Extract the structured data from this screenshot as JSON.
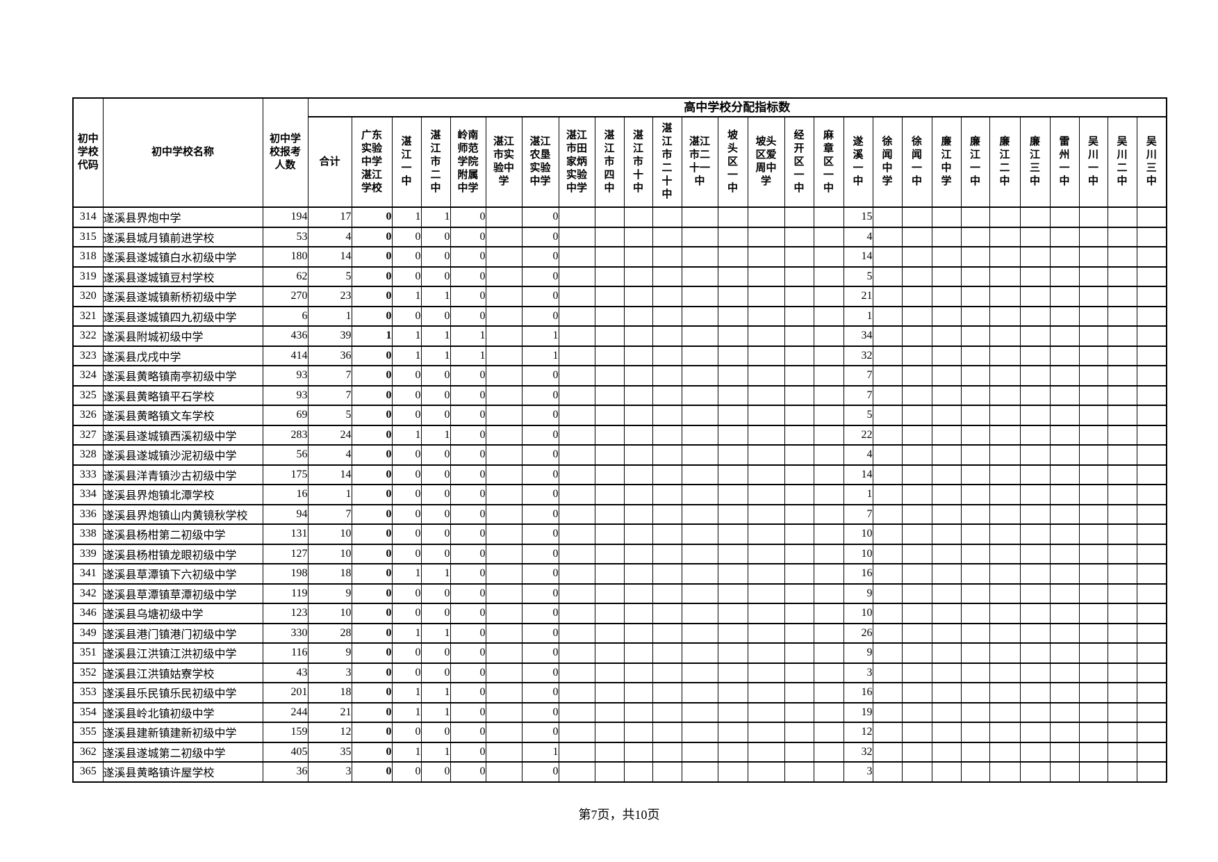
{
  "document": {
    "span_header": "高中学校分配指标数",
    "footer": "第7页，共10页"
  },
  "table": {
    "left_columns": [
      {
        "label": "初中学校代码"
      },
      {
        "label": "初中学校名称"
      },
      {
        "label": "初中学校报考人数"
      }
    ],
    "high_school_columns": [
      {
        "label": "合计"
      },
      {
        "label": "广东实验中学湛江学校"
      },
      {
        "label": "湛江一中"
      },
      {
        "label": "湛江市二中"
      },
      {
        "label": "岭南师范学院附属中学"
      },
      {
        "label": "湛江市实验中学"
      },
      {
        "label": "湛江农垦实验中学"
      },
      {
        "label": "湛江市田家炳实验中学"
      },
      {
        "label": "湛江市四中"
      },
      {
        "label": "湛江市十中"
      },
      {
        "label": "湛江市二十中"
      },
      {
        "label": "湛江市二十一中"
      },
      {
        "label": "坡头区一中"
      },
      {
        "label": "坡头区爱周中学"
      },
      {
        "label": "经开区一中"
      },
      {
        "label": "麻章区一中"
      },
      {
        "label": "遂溪一中"
      },
      {
        "label": "徐闻中学"
      },
      {
        "label": "徐闻一中"
      },
      {
        "label": "廉江中学"
      },
      {
        "label": "廉江一中"
      },
      {
        "label": "廉江二中"
      },
      {
        "label": "廉江三中"
      },
      {
        "label": "雷州一中"
      },
      {
        "label": "吴川一中"
      },
      {
        "label": "吴川二中"
      },
      {
        "label": "吴川三中"
      }
    ],
    "bold_quota_col_index": 1,
    "rows": [
      {
        "code": "314",
        "name": "遂溪县界炮中学",
        "applicants": 194,
        "quotas": [
          17,
          0,
          1,
          1,
          0,
          null,
          0,
          null,
          null,
          null,
          null,
          null,
          null,
          null,
          null,
          null,
          15,
          null,
          null,
          null,
          null,
          null,
          null,
          null,
          null,
          null,
          null
        ]
      },
      {
        "code": "315",
        "name": "遂溪县城月镇前进学校",
        "applicants": 53,
        "quotas": [
          4,
          0,
          0,
          0,
          0,
          null,
          0,
          null,
          null,
          null,
          null,
          null,
          null,
          null,
          null,
          null,
          4,
          null,
          null,
          null,
          null,
          null,
          null,
          null,
          null,
          null,
          null
        ]
      },
      {
        "code": "318",
        "name": "遂溪县遂城镇白水初级中学",
        "applicants": 180,
        "quotas": [
          14,
          0,
          0,
          0,
          0,
          null,
          0,
          null,
          null,
          null,
          null,
          null,
          null,
          null,
          null,
          null,
          14,
          null,
          null,
          null,
          null,
          null,
          null,
          null,
          null,
          null,
          null
        ]
      },
      {
        "code": "319",
        "name": "遂溪县遂城镇豆村学校",
        "applicants": 62,
        "quotas": [
          5,
          0,
          0,
          0,
          0,
          null,
          0,
          null,
          null,
          null,
          null,
          null,
          null,
          null,
          null,
          null,
          5,
          null,
          null,
          null,
          null,
          null,
          null,
          null,
          null,
          null,
          null
        ]
      },
      {
        "code": "320",
        "name": "遂溪县遂城镇新桥初级中学",
        "applicants": 270,
        "quotas": [
          23,
          0,
          1,
          1,
          0,
          null,
          0,
          null,
          null,
          null,
          null,
          null,
          null,
          null,
          null,
          null,
          21,
          null,
          null,
          null,
          null,
          null,
          null,
          null,
          null,
          null,
          null
        ]
      },
      {
        "code": "321",
        "name": "遂溪县遂城镇四九初级中学",
        "applicants": 6,
        "quotas": [
          1,
          0,
          0,
          0,
          0,
          null,
          0,
          null,
          null,
          null,
          null,
          null,
          null,
          null,
          null,
          null,
          1,
          null,
          null,
          null,
          null,
          null,
          null,
          null,
          null,
          null,
          null
        ]
      },
      {
        "code": "322",
        "name": "遂溪县附城初级中学",
        "applicants": 436,
        "quotas": [
          39,
          1,
          1,
          1,
          1,
          null,
          1,
          null,
          null,
          null,
          null,
          null,
          null,
          null,
          null,
          null,
          34,
          null,
          null,
          null,
          null,
          null,
          null,
          null,
          null,
          null,
          null
        ]
      },
      {
        "code": "323",
        "name": "遂溪县戊戌中学",
        "applicants": 414,
        "quotas": [
          36,
          0,
          1,
          1,
          1,
          null,
          1,
          null,
          null,
          null,
          null,
          null,
          null,
          null,
          null,
          null,
          32,
          null,
          null,
          null,
          null,
          null,
          null,
          null,
          null,
          null,
          null
        ]
      },
      {
        "code": "324",
        "name": "遂溪县黄略镇南亭初级中学",
        "applicants": 93,
        "quotas": [
          7,
          0,
          0,
          0,
          0,
          null,
          0,
          null,
          null,
          null,
          null,
          null,
          null,
          null,
          null,
          null,
          7,
          null,
          null,
          null,
          null,
          null,
          null,
          null,
          null,
          null,
          null
        ]
      },
      {
        "code": "325",
        "name": "遂溪县黄略镇平石学校",
        "applicants": 93,
        "quotas": [
          7,
          0,
          0,
          0,
          0,
          null,
          0,
          null,
          null,
          null,
          null,
          null,
          null,
          null,
          null,
          null,
          7,
          null,
          null,
          null,
          null,
          null,
          null,
          null,
          null,
          null,
          null
        ]
      },
      {
        "code": "326",
        "name": "遂溪县黄略镇文车学校",
        "applicants": 69,
        "quotas": [
          5,
          0,
          0,
          0,
          0,
          null,
          0,
          null,
          null,
          null,
          null,
          null,
          null,
          null,
          null,
          null,
          5,
          null,
          null,
          null,
          null,
          null,
          null,
          null,
          null,
          null,
          null
        ]
      },
      {
        "code": "327",
        "name": "遂溪县遂城镇西溪初级中学",
        "applicants": 283,
        "quotas": [
          24,
          0,
          1,
          1,
          0,
          null,
          0,
          null,
          null,
          null,
          null,
          null,
          null,
          null,
          null,
          null,
          22,
          null,
          null,
          null,
          null,
          null,
          null,
          null,
          null,
          null,
          null
        ]
      },
      {
        "code": "328",
        "name": "遂溪县遂城镇沙泥初级中学",
        "applicants": 56,
        "quotas": [
          4,
          0,
          0,
          0,
          0,
          null,
          0,
          null,
          null,
          null,
          null,
          null,
          null,
          null,
          null,
          null,
          4,
          null,
          null,
          null,
          null,
          null,
          null,
          null,
          null,
          null,
          null
        ]
      },
      {
        "code": "333",
        "name": "遂溪县洋青镇沙古初级中学",
        "applicants": 175,
        "quotas": [
          14,
          0,
          0,
          0,
          0,
          null,
          0,
          null,
          null,
          null,
          null,
          null,
          null,
          null,
          null,
          null,
          14,
          null,
          null,
          null,
          null,
          null,
          null,
          null,
          null,
          null,
          null
        ]
      },
      {
        "code": "334",
        "name": "遂溪县界炮镇北潭学校",
        "applicants": 16,
        "quotas": [
          1,
          0,
          0,
          0,
          0,
          null,
          0,
          null,
          null,
          null,
          null,
          null,
          null,
          null,
          null,
          null,
          1,
          null,
          null,
          null,
          null,
          null,
          null,
          null,
          null,
          null,
          null
        ]
      },
      {
        "code": "336",
        "name": "遂溪县界炮镇山内黄镜秋学校",
        "applicants": 94,
        "quotas": [
          7,
          0,
          0,
          0,
          0,
          null,
          0,
          null,
          null,
          null,
          null,
          null,
          null,
          null,
          null,
          null,
          7,
          null,
          null,
          null,
          null,
          null,
          null,
          null,
          null,
          null,
          null
        ]
      },
      {
        "code": "338",
        "name": "遂溪县杨柑第二初级中学",
        "applicants": 131,
        "quotas": [
          10,
          0,
          0,
          0,
          0,
          null,
          0,
          null,
          null,
          null,
          null,
          null,
          null,
          null,
          null,
          null,
          10,
          null,
          null,
          null,
          null,
          null,
          null,
          null,
          null,
          null,
          null
        ]
      },
      {
        "code": "339",
        "name": "遂溪县杨柑镇龙眼初级中学",
        "applicants": 127,
        "quotas": [
          10,
          0,
          0,
          0,
          0,
          null,
          0,
          null,
          null,
          null,
          null,
          null,
          null,
          null,
          null,
          null,
          10,
          null,
          null,
          null,
          null,
          null,
          null,
          null,
          null,
          null,
          null
        ]
      },
      {
        "code": "341",
        "name": "遂溪县草潭镇下六初级中学",
        "applicants": 198,
        "quotas": [
          18,
          0,
          1,
          1,
          0,
          null,
          0,
          null,
          null,
          null,
          null,
          null,
          null,
          null,
          null,
          null,
          16,
          null,
          null,
          null,
          null,
          null,
          null,
          null,
          null,
          null,
          null
        ]
      },
      {
        "code": "342",
        "name": "遂溪县草潭镇草潭初级中学",
        "applicants": 119,
        "quotas": [
          9,
          0,
          0,
          0,
          0,
          null,
          0,
          null,
          null,
          null,
          null,
          null,
          null,
          null,
          null,
          null,
          9,
          null,
          null,
          null,
          null,
          null,
          null,
          null,
          null,
          null,
          null
        ]
      },
      {
        "code": "346",
        "name": "遂溪县乌塘初级中学",
        "applicants": 123,
        "quotas": [
          10,
          0,
          0,
          0,
          0,
          null,
          0,
          null,
          null,
          null,
          null,
          null,
          null,
          null,
          null,
          null,
          10,
          null,
          null,
          null,
          null,
          null,
          null,
          null,
          null,
          null,
          null
        ]
      },
      {
        "code": "349",
        "name": "遂溪县港门镇港门初级中学",
        "applicants": 330,
        "quotas": [
          28,
          0,
          1,
          1,
          0,
          null,
          0,
          null,
          null,
          null,
          null,
          null,
          null,
          null,
          null,
          null,
          26,
          null,
          null,
          null,
          null,
          null,
          null,
          null,
          null,
          null,
          null
        ]
      },
      {
        "code": "351",
        "name": "遂溪县江洪镇江洪初级中学",
        "applicants": 116,
        "quotas": [
          9,
          0,
          0,
          0,
          0,
          null,
          0,
          null,
          null,
          null,
          null,
          null,
          null,
          null,
          null,
          null,
          9,
          null,
          null,
          null,
          null,
          null,
          null,
          null,
          null,
          null,
          null
        ]
      },
      {
        "code": "352",
        "name": "遂溪县江洪镇姑寮学校",
        "applicants": 43,
        "quotas": [
          3,
          0,
          0,
          0,
          0,
          null,
          0,
          null,
          null,
          null,
          null,
          null,
          null,
          null,
          null,
          null,
          3,
          null,
          null,
          null,
          null,
          null,
          null,
          null,
          null,
          null,
          null
        ]
      },
      {
        "code": "353",
        "name": "遂溪县乐民镇乐民初级中学",
        "applicants": 201,
        "quotas": [
          18,
          0,
          1,
          1,
          0,
          null,
          0,
          null,
          null,
          null,
          null,
          null,
          null,
          null,
          null,
          null,
          16,
          null,
          null,
          null,
          null,
          null,
          null,
          null,
          null,
          null,
          null
        ]
      },
      {
        "code": "354",
        "name": "遂溪县岭北镇初级中学",
        "applicants": 244,
        "quotas": [
          21,
          0,
          1,
          1,
          0,
          null,
          0,
          null,
          null,
          null,
          null,
          null,
          null,
          null,
          null,
          null,
          19,
          null,
          null,
          null,
          null,
          null,
          null,
          null,
          null,
          null,
          null
        ]
      },
      {
        "code": "355",
        "name": "遂溪县建新镇建新初级中学",
        "applicants": 159,
        "quotas": [
          12,
          0,
          0,
          0,
          0,
          null,
          0,
          null,
          null,
          null,
          null,
          null,
          null,
          null,
          null,
          null,
          12,
          null,
          null,
          null,
          null,
          null,
          null,
          null,
          null,
          null,
          null
        ]
      },
      {
        "code": "362",
        "name": "遂溪县遂城第二初级中学",
        "applicants": 405,
        "quotas": [
          35,
          0,
          1,
          1,
          0,
          null,
          1,
          null,
          null,
          null,
          null,
          null,
          null,
          null,
          null,
          null,
          32,
          null,
          null,
          null,
          null,
          null,
          null,
          null,
          null,
          null,
          null
        ]
      },
      {
        "code": "365",
        "name": "遂溪县黄略镇许屋学校",
        "applicants": 36,
        "quotas": [
          3,
          0,
          0,
          0,
          0,
          null,
          0,
          null,
          null,
          null,
          null,
          null,
          null,
          null,
          null,
          null,
          3,
          null,
          null,
          null,
          null,
          null,
          null,
          null,
          null,
          null,
          null
        ]
      }
    ]
  }
}
